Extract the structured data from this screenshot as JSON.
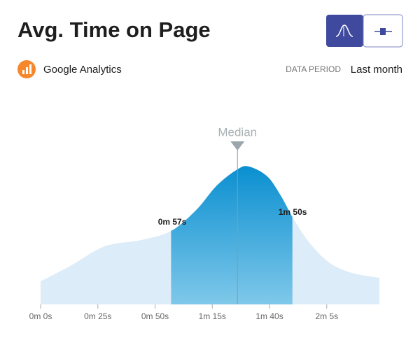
{
  "header": {
    "title": "Avg. Time on Page",
    "source": "Google Analytics",
    "period_label": "DATA PERIOD",
    "period": "Last month"
  },
  "chart_data": {
    "type": "area",
    "x": [
      0,
      13,
      28,
      44,
      57,
      68,
      77,
      86,
      91,
      99,
      105,
      110,
      117,
      126,
      136,
      148
    ],
    "values": [
      33,
      55,
      83,
      92,
      105,
      135,
      170,
      193,
      197,
      183,
      155,
      125,
      90,
      60,
      45,
      38
    ],
    "color": "#dcecf8",
    "xlim": [
      0,
      148
    ],
    "ylim": [
      0,
      210
    ],
    "xticks": [
      {
        "value": 0,
        "label": "0m 0s"
      },
      {
        "value": 25,
        "label": "0m 25s"
      },
      {
        "value": 50,
        "label": "0m 50s"
      },
      {
        "value": 75,
        "label": "1m 15s"
      },
      {
        "value": 100,
        "label": "1m 40s"
      },
      {
        "value": 125,
        "label": "2m 5s"
      }
    ],
    "range": {
      "values": [
        57,
        110
      ],
      "value_labels": [
        "0m 57s",
        "1m 50s"
      ],
      "color": "#0a8fd0"
    },
    "median": {
      "label": "Median",
      "value": 86
    }
  }
}
